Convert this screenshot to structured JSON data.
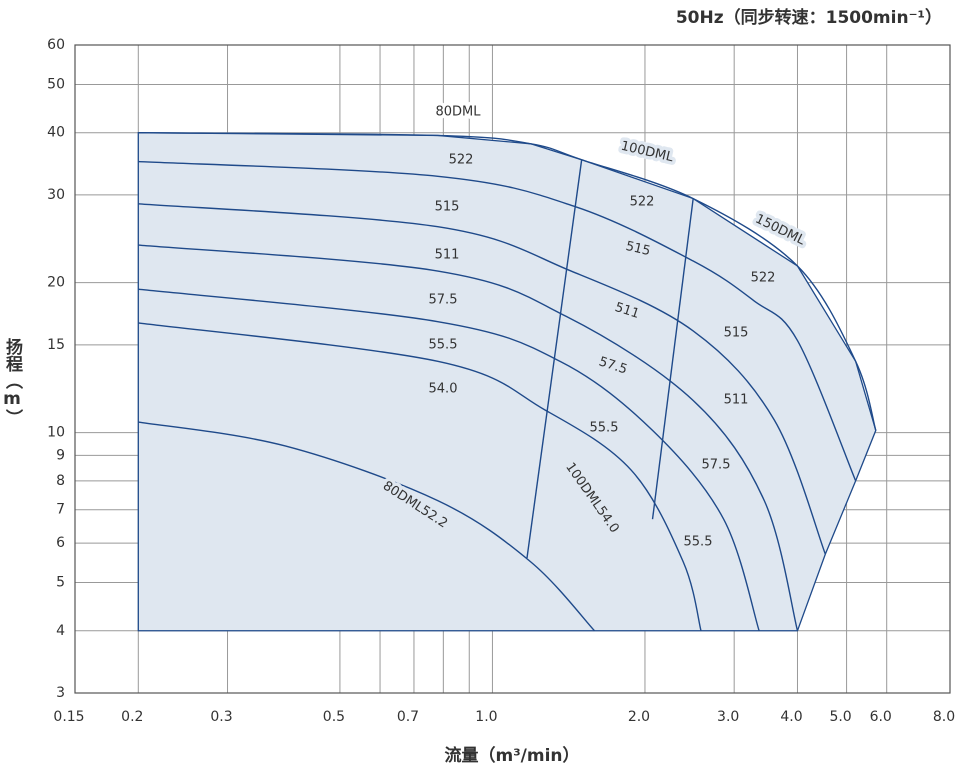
{
  "chart_data": {
    "type": "line",
    "title": "50Hz（同步转速：1500min⁻¹）",
    "x_label": "流量（m³/min）",
    "y_label": "扬程（m）",
    "log_x": true,
    "log_y": true,
    "grid": true,
    "line_color": "#1f4a8a",
    "fill_color": "#dfe7f0",
    "xlim": [
      0.15,
      8
    ],
    "ylim": [
      3,
      60
    ],
    "xticks": [
      0.15,
      0.2,
      0.3,
      0.5,
      0.7,
      {
        "value": 1,
        "label": "1.0"
      },
      {
        "value": 2,
        "label": "2.0"
      },
      {
        "value": 3,
        "label": "3.0"
      },
      {
        "value": 4,
        "label": "4.0"
      },
      {
        "value": 5,
        "label": "5.0"
      },
      {
        "value": 6,
        "label": "6.0"
      },
      {
        "value": 8,
        "label": "8.0"
      }
    ],
    "x_minor_grid": [
      0.6,
      0.8,
      0.9
    ],
    "yticks": [
      3,
      4,
      5,
      6,
      7,
      8,
      9,
      10,
      15,
      20,
      30,
      40,
      50,
      60
    ],
    "series": [
      {
        "x": [
          0.2,
          0.78,
          1.19,
          1.5,
          2.49,
          4.0,
          5.21,
          5.71
        ],
        "values": [
          40,
          39.5,
          38,
          35.3,
          29.5,
          21.6,
          13.9,
          10.1
        ]
      },
      {
        "x": [
          0.2,
          0.78,
          1.46,
          2.49,
          3.28,
          4.0,
          5.21
        ],
        "values": [
          35,
          32.7,
          28.4,
          22.1,
          18.4,
          15.3,
          8.0
        ]
      },
      {
        "x": [
          0.2,
          0.78,
          1.43,
          2.49,
          3.6,
          4.54
        ],
        "values": [
          28.8,
          25.9,
          21.1,
          16.0,
          10.6,
          5.7
        ]
      },
      {
        "x": [
          0.2,
          0.78,
          1.4,
          2.49,
          3.44,
          4.0
        ],
        "values": [
          23.8,
          21.1,
          17.1,
          11.6,
          7.3,
          4.0
        ]
      },
      {
        "x": [
          0.2,
          0.78,
          1.36,
          2.07,
          2.86,
          3.36
        ],
        "values": [
          19.4,
          16.7,
          13.9,
          10.1,
          6.7,
          4.0
        ]
      },
      {
        "x": [
          0.2,
          0.78,
          1.27,
          1.88,
          2.38,
          2.58
        ],
        "values": [
          16.6,
          13.9,
          11.1,
          8.4,
          5.5,
          4.0
        ]
      },
      {
        "x": [
          0.2,
          0.39,
          0.78,
          1.19,
          1.59
        ],
        "values": [
          10.5,
          9.4,
          7.3,
          5.5,
          4.0
        ]
      }
    ],
    "boundaries": [
      {
        "x": [
          1.5,
          1.17
        ],
        "values": [
          35.3,
          5.6
        ]
      },
      {
        "x": [
          2.49,
          2.07
        ],
        "values": [
          29.5,
          6.7
        ]
      }
    ],
    "annotations": [
      "80DML",
      "522",
      "515",
      "511",
      "57.5",
      "55.5",
      "54.0",
      "100DML",
      "522",
      "515",
      "511",
      "57.5",
      "55.5",
      "100DML54.0",
      "80DML52.2",
      "150DML",
      "522",
      "515",
      "511",
      "57.5",
      "55.5"
    ]
  }
}
